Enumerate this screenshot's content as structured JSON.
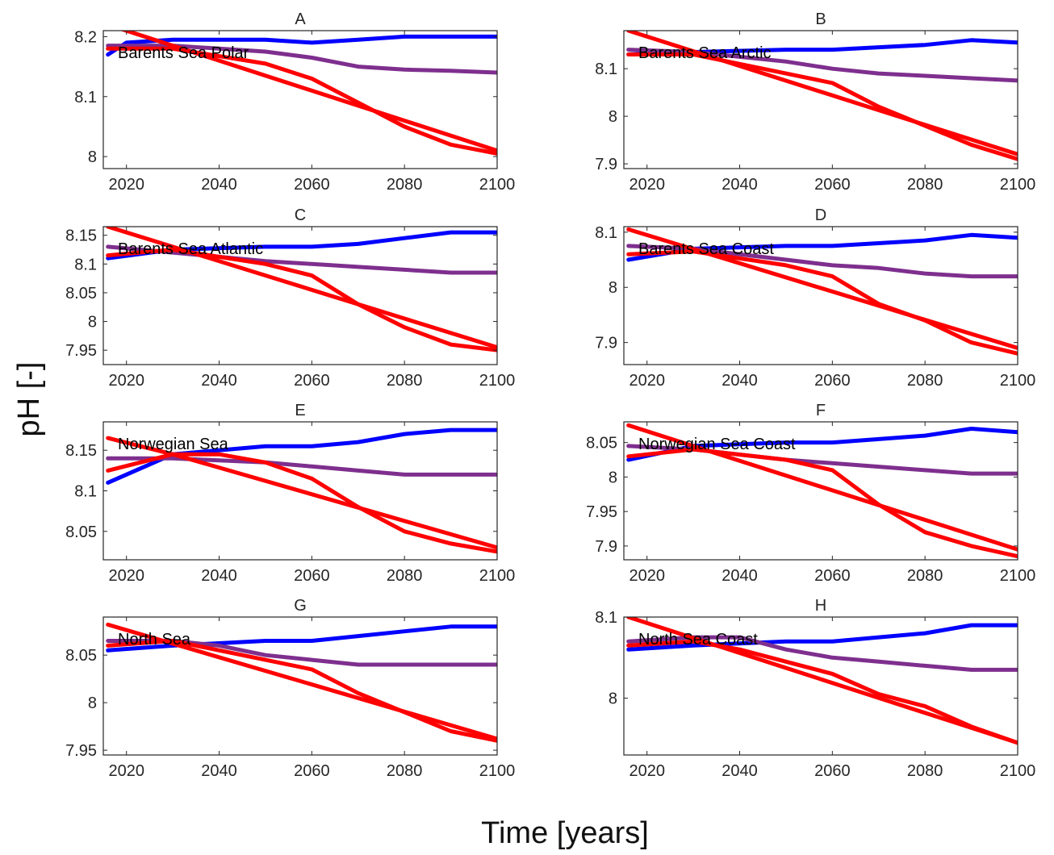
{
  "figure": {
    "ylabel": "pH [-]",
    "xlabel": "Time [years]"
  },
  "chart_data": [
    {
      "type": "line",
      "title": "A",
      "annotation": "Barents Sea Polar",
      "xlim": [
        2015,
        2100
      ],
      "ylim": [
        7.98,
        8.21
      ],
      "xticks": [
        2020,
        2040,
        2060,
        2080,
        2100
      ],
      "yticks": [
        8,
        8.1,
        8.2
      ],
      "series": [
        {
          "color": "#0000ff",
          "x": [
            2016,
            2020,
            2030,
            2040,
            2050,
            2060,
            2070,
            2080,
            2090,
            2100
          ],
          "values": [
            8.17,
            8.19,
            8.195,
            8.195,
            8.195,
            8.19,
            8.195,
            8.2,
            8.2,
            8.2
          ]
        },
        {
          "color": "#7e2f8e",
          "x": [
            2016,
            2030,
            2050,
            2060,
            2070,
            2080,
            2090,
            2100
          ],
          "values": [
            8.185,
            8.185,
            8.175,
            8.165,
            8.15,
            8.145,
            8.143,
            8.14
          ]
        },
        {
          "color": "#ff0000",
          "x": [
            2016,
            2030,
            2050,
            2060,
            2070,
            2080,
            2090,
            2100
          ],
          "values": [
            8.18,
            8.18,
            8.155,
            8.13,
            8.09,
            8.05,
            8.02,
            8.005
          ]
        },
        {
          "color": "#ff0000",
          "x": [
            2016,
            2100
          ],
          "values": [
            8.22,
            8.01
          ]
        }
      ]
    },
    {
      "type": "line",
      "title": "B",
      "annotation": "Barents Sea Arctic",
      "xlim": [
        2015,
        2100
      ],
      "ylim": [
        7.89,
        8.18
      ],
      "xticks": [
        2020,
        2040,
        2060,
        2080,
        2100
      ],
      "yticks": [
        7.9,
        8,
        8.1
      ],
      "series": [
        {
          "color": "#0000ff",
          "x": [
            2016,
            2030,
            2050,
            2060,
            2070,
            2080,
            2090,
            2100
          ],
          "values": [
            8.13,
            8.135,
            8.14,
            8.14,
            8.145,
            8.15,
            8.16,
            8.155
          ]
        },
        {
          "color": "#7e2f8e",
          "x": [
            2016,
            2030,
            2050,
            2060,
            2070,
            2080,
            2090,
            2100
          ],
          "values": [
            8.14,
            8.135,
            8.115,
            8.1,
            8.09,
            8.085,
            8.08,
            8.075
          ]
        },
        {
          "color": "#ff0000",
          "x": [
            2016,
            2030,
            2050,
            2060,
            2070,
            2080,
            2090,
            2100
          ],
          "values": [
            8.13,
            8.13,
            8.09,
            8.07,
            8.02,
            7.98,
            7.94,
            7.91
          ]
        },
        {
          "color": "#ff0000",
          "x": [
            2016,
            2100
          ],
          "values": [
            8.18,
            7.92
          ]
        }
      ]
    },
    {
      "type": "line",
      "title": "C",
      "annotation": "Barents Sea Atlantic",
      "xlim": [
        2015,
        2100
      ],
      "ylim": [
        7.925,
        8.165
      ],
      "xticks": [
        2020,
        2040,
        2060,
        2080,
        2100
      ],
      "yticks": [
        7.95,
        8,
        8.05,
        8.1,
        8.15
      ],
      "series": [
        {
          "color": "#0000ff",
          "x": [
            2016,
            2030,
            2050,
            2060,
            2070,
            2080,
            2090,
            2100
          ],
          "values": [
            8.11,
            8.125,
            8.13,
            8.13,
            8.135,
            8.145,
            8.155,
            8.155
          ]
        },
        {
          "color": "#7e2f8e",
          "x": [
            2016,
            2030,
            2050,
            2060,
            2070,
            2080,
            2090,
            2100
          ],
          "values": [
            8.13,
            8.12,
            8.105,
            8.1,
            8.095,
            8.09,
            8.085,
            8.085
          ]
        },
        {
          "color": "#ff0000",
          "x": [
            2016,
            2030,
            2050,
            2060,
            2070,
            2080,
            2090,
            2100
          ],
          "values": [
            8.115,
            8.125,
            8.1,
            8.08,
            8.03,
            7.99,
            7.96,
            7.95
          ]
        },
        {
          "color": "#ff0000",
          "x": [
            2016,
            2100
          ],
          "values": [
            8.165,
            7.955
          ]
        }
      ]
    },
    {
      "type": "line",
      "title": "D",
      "annotation": "Barents Sea Coast",
      "xlim": [
        2015,
        2100
      ],
      "ylim": [
        7.86,
        8.11
      ],
      "xticks": [
        2020,
        2040,
        2060,
        2080,
        2100
      ],
      "yticks": [
        7.9,
        8,
        8.1
      ],
      "series": [
        {
          "color": "#0000ff",
          "x": [
            2016,
            2030,
            2050,
            2060,
            2070,
            2080,
            2090,
            2100
          ],
          "values": [
            8.05,
            8.07,
            8.075,
            8.075,
            8.08,
            8.085,
            8.095,
            8.09
          ]
        },
        {
          "color": "#7e2f8e",
          "x": [
            2016,
            2030,
            2050,
            2060,
            2070,
            2080,
            2090,
            2100
          ],
          "values": [
            8.075,
            8.07,
            8.05,
            8.04,
            8.035,
            8.025,
            8.02,
            8.02
          ]
        },
        {
          "color": "#ff0000",
          "x": [
            2016,
            2030,
            2050,
            2060,
            2070,
            2080,
            2090,
            2100
          ],
          "values": [
            8.06,
            8.065,
            8.04,
            8.02,
            7.97,
            7.94,
            7.9,
            7.88
          ]
        },
        {
          "color": "#ff0000",
          "x": [
            2016,
            2100
          ],
          "values": [
            8.105,
            7.89
          ]
        }
      ]
    },
    {
      "type": "line",
      "title": "E",
      "annotation": "Norwegian Sea",
      "xlim": [
        2015,
        2100
      ],
      "ylim": [
        8.015,
        8.185
      ],
      "xticks": [
        2020,
        2040,
        2060,
        2080,
        2100
      ],
      "yticks": [
        8.05,
        8.1,
        8.15
      ],
      "series": [
        {
          "color": "#0000ff",
          "x": [
            2016,
            2030,
            2050,
            2060,
            2070,
            2080,
            2090,
            2100
          ],
          "values": [
            8.11,
            8.145,
            8.155,
            8.155,
            8.16,
            8.17,
            8.175,
            8.175
          ]
        },
        {
          "color": "#7e2f8e",
          "x": [
            2016,
            2030,
            2050,
            2060,
            2070,
            2080,
            2090,
            2100
          ],
          "values": [
            8.14,
            8.14,
            8.135,
            8.13,
            8.125,
            8.12,
            8.12,
            8.12
          ]
        },
        {
          "color": "#ff0000",
          "x": [
            2016,
            2030,
            2040,
            2050,
            2060,
            2070,
            2080,
            2090,
            2100
          ],
          "values": [
            8.125,
            8.145,
            8.145,
            8.135,
            8.115,
            8.08,
            8.05,
            8.035,
            8.025
          ]
        },
        {
          "color": "#ff0000",
          "x": [
            2016,
            2030,
            2100
          ],
          "values": [
            8.165,
            8.145,
            8.03
          ]
        }
      ]
    },
    {
      "type": "line",
      "title": "F",
      "annotation": "Norwegian Sea Coast",
      "xlim": [
        2015,
        2100
      ],
      "ylim": [
        7.88,
        8.08
      ],
      "xticks": [
        2020,
        2040,
        2060,
        2080,
        2100
      ],
      "yticks": [
        7.9,
        7.95,
        8,
        8.05
      ],
      "series": [
        {
          "color": "#0000ff",
          "x": [
            2016,
            2030,
            2050,
            2060,
            2070,
            2080,
            2090,
            2100
          ],
          "values": [
            8.025,
            8.045,
            8.05,
            8.05,
            8.055,
            8.06,
            8.07,
            8.065
          ]
        },
        {
          "color": "#7e2f8e",
          "x": [
            2016,
            2030,
            2050,
            2060,
            2070,
            2080,
            2090,
            2100
          ],
          "values": [
            8.045,
            8.04,
            8.025,
            8.02,
            8.015,
            8.01,
            8.005,
            8.005
          ]
        },
        {
          "color": "#ff0000",
          "x": [
            2016,
            2030,
            2050,
            2060,
            2070,
            2080,
            2090,
            2100
          ],
          "values": [
            8.03,
            8.04,
            8.025,
            8.01,
            7.96,
            7.92,
            7.9,
            7.885
          ]
        },
        {
          "color": "#ff0000",
          "x": [
            2016,
            2100
          ],
          "values": [
            8.075,
            7.895
          ]
        }
      ]
    },
    {
      "type": "line",
      "title": "G",
      "annotation": "North Sea",
      "xlim": [
        2015,
        2100
      ],
      "ylim": [
        7.945,
        8.09
      ],
      "xticks": [
        2020,
        2040,
        2060,
        2080,
        2100
      ],
      "yticks": [
        7.95,
        8,
        8.05
      ],
      "series": [
        {
          "color": "#0000ff",
          "x": [
            2016,
            2030,
            2050,
            2060,
            2070,
            2080,
            2090,
            2100
          ],
          "values": [
            8.055,
            8.06,
            8.065,
            8.065,
            8.07,
            8.075,
            8.08,
            8.08
          ]
        },
        {
          "color": "#7e2f8e",
          "x": [
            2016,
            2030,
            2040,
            2050,
            2060,
            2070,
            2080,
            2090,
            2100
          ],
          "values": [
            8.065,
            8.065,
            8.06,
            8.05,
            8.045,
            8.04,
            8.04,
            8.04,
            8.04
          ]
        },
        {
          "color": "#ff0000",
          "x": [
            2016,
            2030,
            2050,
            2060,
            2070,
            2080,
            2090,
            2100
          ],
          "values": [
            8.06,
            8.065,
            8.045,
            8.035,
            8.01,
            7.99,
            7.97,
            7.96
          ]
        },
        {
          "color": "#ff0000",
          "x": [
            2016,
            2100
          ],
          "values": [
            8.082,
            7.962
          ]
        }
      ]
    },
    {
      "type": "line",
      "title": "H",
      "annotation": "North Sea Coast",
      "xlim": [
        2015,
        2100
      ],
      "ylim": [
        7.93,
        8.1
      ],
      "xticks": [
        2020,
        2040,
        2060,
        2080,
        2100
      ],
      "yticks": [
        8,
        8.1
      ],
      "series": [
        {
          "color": "#0000ff",
          "x": [
            2016,
            2030,
            2050,
            2060,
            2070,
            2080,
            2090,
            2100
          ],
          "values": [
            8.06,
            8.065,
            8.07,
            8.07,
            8.075,
            8.08,
            8.09,
            8.09
          ]
        },
        {
          "color": "#7e2f8e",
          "x": [
            2016,
            2030,
            2040,
            2050,
            2060,
            2070,
            2080,
            2090,
            2100
          ],
          "values": [
            8.07,
            8.075,
            8.075,
            8.06,
            8.05,
            8.045,
            8.04,
            8.035,
            8.035
          ]
        },
        {
          "color": "#ff0000",
          "x": [
            2016,
            2030,
            2040,
            2050,
            2060,
            2070,
            2080,
            2090,
            2100
          ],
          "values": [
            8.065,
            8.07,
            8.06,
            8.045,
            8.03,
            8.005,
            7.99,
            7.965,
            7.945
          ]
        },
        {
          "color": "#ff0000",
          "x": [
            2016,
            2100
          ],
          "values": [
            8.1,
            7.945
          ]
        }
      ]
    }
  ]
}
